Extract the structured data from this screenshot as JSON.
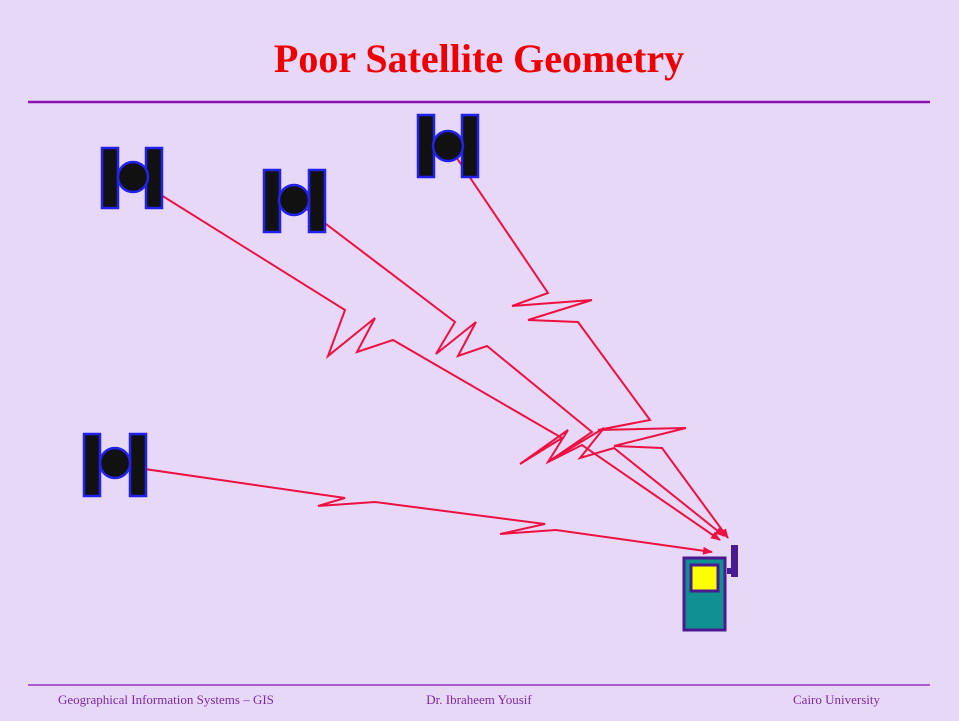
{
  "title": "Poor Satellite Geometry",
  "footer": {
    "left": "Geographical Information Systems – GIS",
    "center": "Dr. Ibraheem Yousif",
    "right": "Cairo University"
  }
}
